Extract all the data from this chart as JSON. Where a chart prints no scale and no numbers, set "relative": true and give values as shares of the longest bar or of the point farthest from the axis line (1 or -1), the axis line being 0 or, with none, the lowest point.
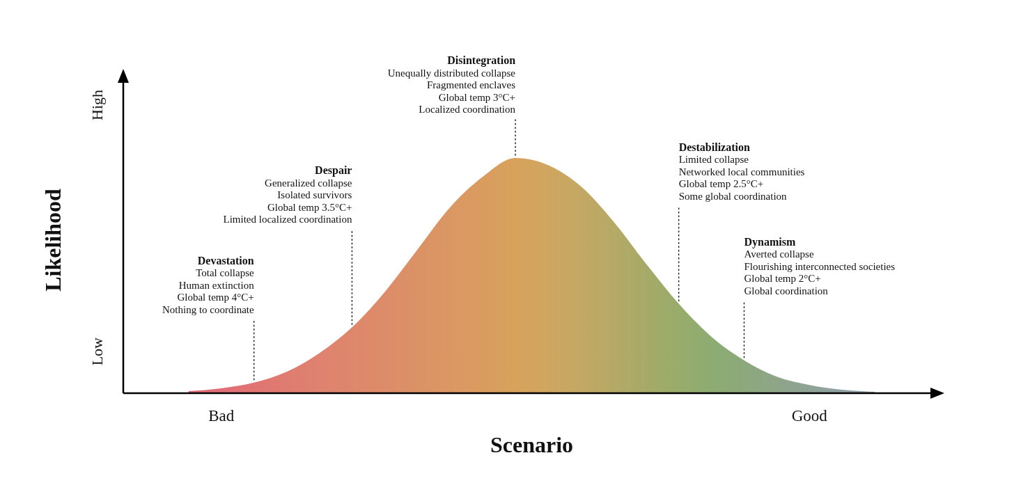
{
  "chart_data": {
    "type": "area",
    "relative": true,
    "xlabel": "Scenario",
    "ylabel": "Likelihood",
    "categories": [
      null,
      null,
      null,
      "Bad",
      null,
      null,
      null,
      null,
      null,
      null,
      null,
      null,
      null,
      null,
      null,
      null,
      null,
      null,
      null,
      null,
      null,
      "Good",
      null,
      null,
      null,
      null
    ],
    "values": [
      null,
      null,
      0.009,
      0.021,
      0.045,
      0.091,
      0.17,
      0.28,
      0.43,
      0.61,
      0.79,
      0.92,
      1,
      0.97,
      0.88,
      0.73,
      0.55,
      0.38,
      0.24,
      0.14,
      0.07,
      0.035,
      0.015,
      0.006,
      null,
      null
    ],
    "colors": [
      "#e06b78",
      "#e06b78",
      "#e06b78",
      "#e16e77",
      "#e07472",
      "#df7c71",
      "#df826f",
      "#de876c",
      "#dd8c69",
      "#db9266",
      "#da9763",
      "#d99c5f",
      "#d7a25c",
      "#cfa660",
      "#c3a863",
      "#b5a966",
      "#a6aa68",
      "#98ac6b",
      "#8dac72",
      "#8ca87c",
      "#8ea588",
      "#8fa396",
      "#8fa1a4",
      "#8fa0ae",
      "#8fa0ae",
      "#8fa0ae"
    ],
    "annotations": [
      "Devastation\nTotal collapse\nHuman extinction\nGlobal temp 4°C+\nNothing to coordinate",
      "Despair\nGeneralized collapse\nIsolated survivors\nGlobal temp 3.5°C+\nLimited localized coordination",
      "Disintegration\nUnequally distributed collapse\nFragmented enclaves\nGlobal temp 3°C+\nLocalized coordination",
      "Destabilization\nLimited collapse\nNetworked local communities\nGlobal temp 2.5°C+\nSome global coordination",
      "Dynamism\nAverted collapse\nFlourishing interconnected societies\nGlobal temp 2°C+\nGlobal coordination",
      "Low",
      "High"
    ]
  }
}
